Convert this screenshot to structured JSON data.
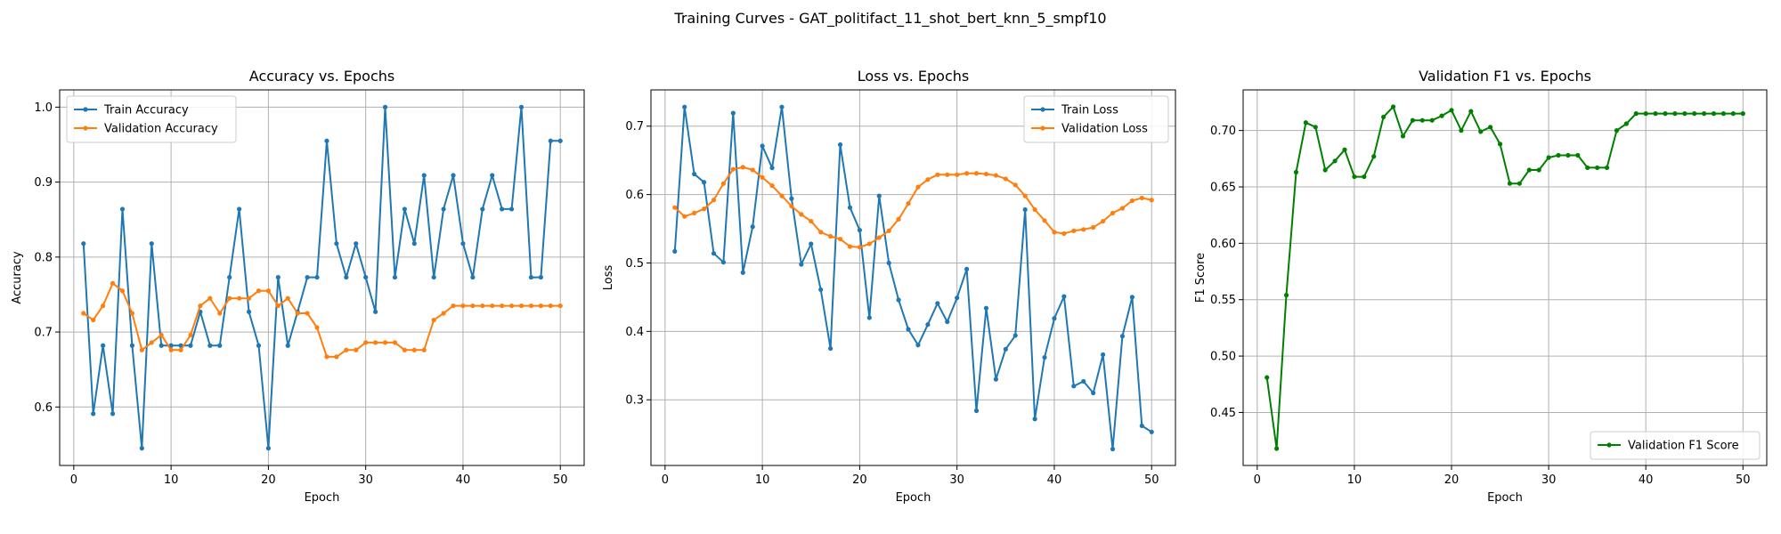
{
  "figure_title": "Training Curves - GAT_politifact_11_shot_bert_knn_5_smpf10",
  "colors": {
    "blue": "#1f77b4",
    "orange": "#ff7f0e",
    "green": "#008000",
    "grid": "#b0b0b0"
  },
  "chart_data": [
    {
      "type": "line",
      "title": "Accuracy vs. Epochs",
      "xlabel": "Epoch",
      "ylabel": "Accuracy",
      "xlim": [
        -1.45,
        52.45
      ],
      "ylim": [
        0.522,
        1.023
      ],
      "xticks": [
        0,
        10,
        20,
        30,
        40,
        50
      ],
      "yticks": [
        0.6,
        0.7,
        0.8,
        0.9,
        1.0
      ],
      "ytick_labels": [
        "0.6",
        "0.7",
        "0.8",
        "0.9",
        "1.0"
      ],
      "grid": true,
      "legend_position": "upper-left",
      "series": [
        {
          "name": "Train Accuracy",
          "color": "#1f77b4",
          "x": [
            1,
            2,
            3,
            4,
            5,
            6,
            7,
            8,
            9,
            10,
            11,
            12,
            13,
            14,
            15,
            16,
            17,
            18,
            19,
            20,
            21,
            22,
            23,
            24,
            25,
            26,
            27,
            28,
            29,
            30,
            31,
            32,
            33,
            34,
            35,
            36,
            37,
            38,
            39,
            40,
            41,
            42,
            43,
            44,
            45,
            46,
            47,
            48,
            49,
            50
          ],
          "values": [
            0.818,
            0.591,
            0.682,
            0.591,
            0.864,
            0.682,
            0.545,
            0.818,
            0.682,
            0.682,
            0.682,
            0.682,
            0.727,
            0.682,
            0.682,
            0.773,
            0.864,
            0.727,
            0.682,
            0.545,
            0.773,
            0.682,
            0.727,
            0.773,
            0.773,
            0.955,
            0.818,
            0.773,
            0.818,
            0.773,
            0.727,
            1.0,
            0.773,
            0.864,
            0.818,
            0.909,
            0.773,
            0.864,
            0.909,
            0.818,
            0.773,
            0.864,
            0.909,
            0.864,
            0.864,
            1.0,
            0.773,
            0.773,
            0.955,
            0.955
          ]
        },
        {
          "name": "Validation Accuracy",
          "color": "#ff7f0e",
          "x": [
            1,
            2,
            3,
            4,
            5,
            6,
            7,
            8,
            9,
            10,
            11,
            12,
            13,
            14,
            15,
            16,
            17,
            18,
            19,
            20,
            21,
            22,
            23,
            24,
            25,
            26,
            27,
            28,
            29,
            30,
            31,
            32,
            33,
            34,
            35,
            36,
            37,
            38,
            39,
            40,
            41,
            42,
            43,
            44,
            45,
            46,
            47,
            48,
            49,
            50
          ],
          "values": [
            0.725,
            0.716,
            0.735,
            0.765,
            0.755,
            0.725,
            0.676,
            0.686,
            0.696,
            0.676,
            0.676,
            0.696,
            0.735,
            0.745,
            0.725,
            0.745,
            0.745,
            0.745,
            0.755,
            0.755,
            0.735,
            0.745,
            0.725,
            0.725,
            0.706,
            0.667,
            0.667,
            0.676,
            0.676,
            0.686,
            0.686,
            0.686,
            0.686,
            0.676,
            0.676,
            0.676,
            0.716,
            0.725,
            0.735,
            0.735,
            0.735,
            0.735,
            0.735,
            0.735,
            0.735,
            0.735,
            0.735,
            0.735,
            0.735,
            0.735
          ]
        }
      ]
    },
    {
      "type": "line",
      "title": "Loss vs. Epochs",
      "xlabel": "Epoch",
      "ylabel": "Loss",
      "xlim": [
        -1.45,
        52.45
      ],
      "ylim": [
        0.204,
        0.753
      ],
      "xticks": [
        0,
        10,
        20,
        30,
        40,
        50
      ],
      "yticks": [
        0.3,
        0.4,
        0.5,
        0.6,
        0.7
      ],
      "ytick_labels": [
        "0.3",
        "0.4",
        "0.5",
        "0.6",
        "0.7"
      ],
      "grid": true,
      "legend_position": "upper-right",
      "series": [
        {
          "name": "Train Loss",
          "color": "#1f77b4",
          "x": [
            1,
            2,
            3,
            4,
            5,
            6,
            7,
            8,
            9,
            10,
            11,
            12,
            13,
            14,
            15,
            16,
            17,
            18,
            19,
            20,
            21,
            22,
            23,
            24,
            25,
            26,
            27,
            28,
            29,
            30,
            31,
            32,
            33,
            34,
            35,
            36,
            37,
            38,
            39,
            40,
            41,
            42,
            43,
            44,
            45,
            46,
            47,
            48,
            49,
            50
          ],
          "values": [
            0.517,
            0.728,
            0.63,
            0.618,
            0.514,
            0.501,
            0.719,
            0.486,
            0.553,
            0.671,
            0.639,
            0.728,
            0.594,
            0.498,
            0.528,
            0.461,
            0.375,
            0.673,
            0.581,
            0.548,
            0.42,
            0.598,
            0.5,
            0.446,
            0.403,
            0.38,
            0.41,
            0.441,
            0.414,
            0.449,
            0.491,
            0.284,
            0.434,
            0.33,
            0.374,
            0.394,
            0.578,
            0.272,
            0.362,
            0.419,
            0.451,
            0.32,
            0.327,
            0.31,
            0.366,
            0.228,
            0.393,
            0.45,
            0.262,
            0.253
          ]
        },
        {
          "name": "Validation Loss",
          "color": "#ff7f0e",
          "x": [
            1,
            2,
            3,
            4,
            5,
            6,
            7,
            8,
            9,
            10,
            11,
            12,
            13,
            14,
            15,
            16,
            17,
            18,
            19,
            20,
            21,
            22,
            23,
            24,
            25,
            26,
            27,
            28,
            29,
            30,
            31,
            32,
            33,
            34,
            35,
            36,
            37,
            38,
            39,
            40,
            41,
            42,
            43,
            44,
            45,
            46,
            47,
            48,
            49,
            50
          ],
          "values": [
            0.581,
            0.568,
            0.573,
            0.579,
            0.592,
            0.616,
            0.637,
            0.64,
            0.636,
            0.625,
            0.613,
            0.598,
            0.583,
            0.571,
            0.561,
            0.545,
            0.539,
            0.535,
            0.524,
            0.523,
            0.528,
            0.537,
            0.547,
            0.564,
            0.587,
            0.611,
            0.622,
            0.629,
            0.629,
            0.629,
            0.631,
            0.631,
            0.63,
            0.628,
            0.623,
            0.614,
            0.598,
            0.578,
            0.562,
            0.545,
            0.543,
            0.547,
            0.549,
            0.552,
            0.561,
            0.573,
            0.58,
            0.591,
            0.595,
            0.592
          ]
        }
      ]
    },
    {
      "type": "line",
      "title": "Validation F1 vs. Epochs",
      "xlabel": "Epoch",
      "ylabel": "F1 Score",
      "xlim": [
        -1.45,
        52.45
      ],
      "ylim": [
        0.403,
        0.736
      ],
      "xticks": [
        0,
        10,
        20,
        30,
        40,
        50
      ],
      "yticks": [
        0.45,
        0.5,
        0.55,
        0.6,
        0.65,
        0.7
      ],
      "ytick_labels": [
        "0.45",
        "0.50",
        "0.55",
        "0.60",
        "0.65",
        "0.70"
      ],
      "grid": true,
      "legend_position": "lower-right",
      "series": [
        {
          "name": "Validation F1 Score",
          "color": "#008000",
          "x": [
            1,
            2,
            3,
            4,
            5,
            6,
            7,
            8,
            9,
            10,
            11,
            12,
            13,
            14,
            15,
            16,
            17,
            18,
            19,
            20,
            21,
            22,
            23,
            24,
            25,
            26,
            27,
            28,
            29,
            30,
            31,
            32,
            33,
            34,
            35,
            36,
            37,
            38,
            39,
            40,
            41,
            42,
            43,
            44,
            45,
            46,
            47,
            48,
            49,
            50
          ],
          "values": [
            0.481,
            0.418,
            0.554,
            0.663,
            0.707,
            0.703,
            0.665,
            0.673,
            0.683,
            0.659,
            0.659,
            0.677,
            0.712,
            0.721,
            0.695,
            0.709,
            0.709,
            0.709,
            0.713,
            0.718,
            0.7,
            0.717,
            0.699,
            0.703,
            0.688,
            0.653,
            0.653,
            0.665,
            0.665,
            0.676,
            0.678,
            0.678,
            0.678,
            0.667,
            0.667,
            0.667,
            0.7,
            0.706,
            0.715,
            0.715,
            0.715,
            0.715,
            0.715,
            0.715,
            0.715,
            0.715,
            0.715,
            0.715,
            0.715,
            0.715
          ]
        }
      ]
    }
  ]
}
